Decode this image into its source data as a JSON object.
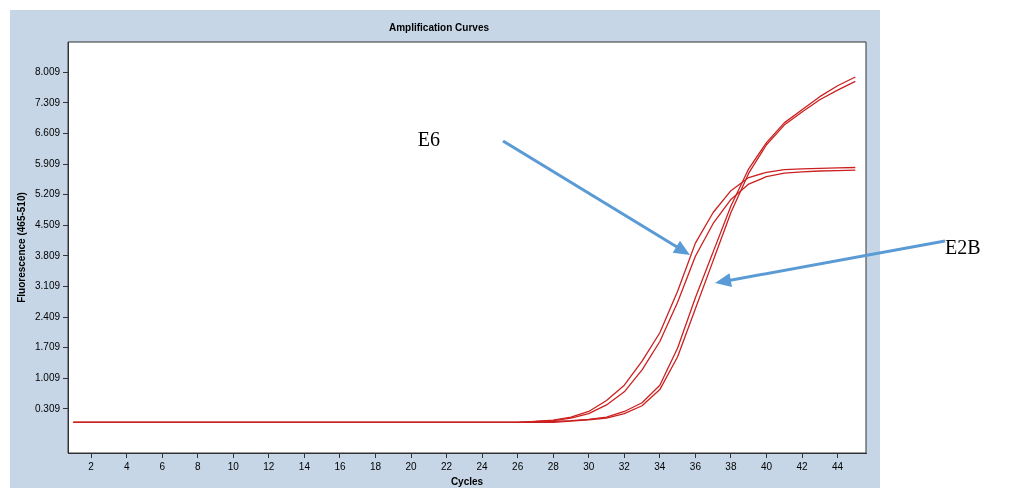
{
  "chart_data": {
    "type": "line",
    "title": "Amplification Curves",
    "xlabel": "Cycles",
    "ylabel": "Fluorescence (465-510)",
    "x": [
      1,
      2,
      3,
      4,
      5,
      6,
      7,
      8,
      9,
      10,
      11,
      12,
      13,
      14,
      15,
      16,
      17,
      18,
      19,
      20,
      21,
      22,
      23,
      24,
      25,
      26,
      27,
      28,
      29,
      30,
      31,
      32,
      33,
      34,
      35,
      36,
      37,
      38,
      39,
      40,
      41,
      42,
      43,
      44,
      45
    ],
    "series": [
      {
        "color": "#cc2020",
        "values": [
          0,
          0,
          0,
          0,
          0,
          0,
          0,
          0,
          0,
          0,
          0,
          0,
          0,
          0,
          0,
          0,
          0,
          0,
          0,
          0,
          0,
          0,
          0,
          0,
          0,
          0,
          0.02,
          0.05,
          0.12,
          0.25,
          0.5,
          0.85,
          1.4,
          2.05,
          3.0,
          4.1,
          4.8,
          5.3,
          5.6,
          5.72,
          5.78,
          5.8,
          5.81,
          5.82,
          5.83
        ]
      },
      {
        "color": "#cc2020",
        "values": [
          0,
          0,
          0,
          0,
          0,
          0,
          0,
          0,
          0,
          0,
          0,
          0,
          0,
          0,
          0,
          0,
          0,
          0,
          0,
          0,
          0,
          0,
          0,
          0,
          0,
          0,
          0.02,
          0.04,
          0.1,
          0.2,
          0.4,
          0.7,
          1.2,
          1.85,
          2.75,
          3.8,
          4.55,
          5.1,
          5.45,
          5.62,
          5.7,
          5.73,
          5.75,
          5.76,
          5.77
        ]
      },
      {
        "color": "#cc2020",
        "values": [
          0,
          0,
          0,
          0,
          0,
          0,
          0,
          0,
          0,
          0,
          0,
          0,
          0,
          0,
          0,
          0,
          0,
          0,
          0,
          0,
          0,
          0,
          0,
          0,
          0,
          0,
          0,
          0.02,
          0.04,
          0.07,
          0.12,
          0.25,
          0.45,
          0.85,
          1.7,
          2.85,
          3.9,
          4.95,
          5.8,
          6.4,
          6.85,
          7.15,
          7.45,
          7.7,
          7.9
        ]
      },
      {
        "color": "#cc2020",
        "values": [
          0,
          0,
          0,
          0,
          0,
          0,
          0,
          0,
          0,
          0,
          0,
          0,
          0,
          0,
          0,
          0,
          0,
          0,
          0,
          0,
          0,
          0,
          0,
          0,
          0,
          0,
          0,
          0,
          0.03,
          0.06,
          0.1,
          0.2,
          0.38,
          0.75,
          1.5,
          2.6,
          3.7,
          4.8,
          5.7,
          6.35,
          6.8,
          7.1,
          7.38,
          7.6,
          7.8
        ]
      }
    ],
    "annotations": [
      "E6",
      "E2B"
    ],
    "xlim": [
      0.7,
      45.6
    ],
    "ylim": [
      -0.7,
      8.7
    ],
    "xticks": [
      2,
      4,
      6,
      8,
      10,
      12,
      14,
      16,
      18,
      20,
      22,
      24,
      26,
      28,
      30,
      32,
      34,
      36,
      38,
      40,
      42,
      44
    ],
    "yticks": [
      0.309,
      1.009,
      1.709,
      2.409,
      3.109,
      3.809,
      4.509,
      5.209,
      5.909,
      6.609,
      7.309,
      8.009
    ],
    "grid": false,
    "legend": false,
    "marker": "none",
    "line_style": "solid"
  }
}
